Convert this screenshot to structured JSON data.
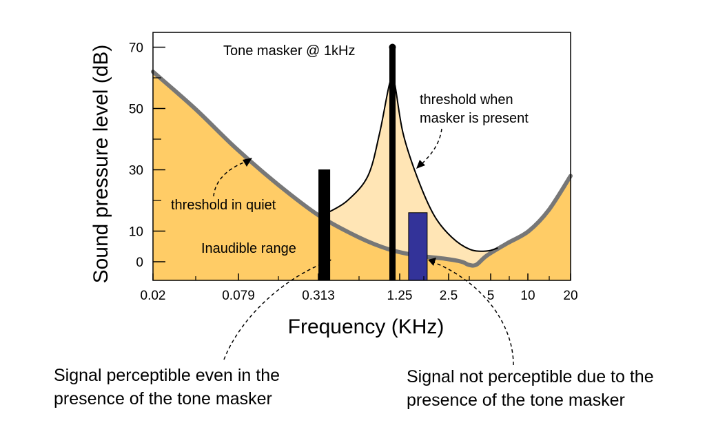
{
  "chart_data": {
    "type": "area",
    "xlabel": "Frequency (KHz)",
    "ylabel": "Sound pressure level (dB)",
    "x_tick_labels": [
      "0.02",
      "0.079",
      "0.313",
      "1.25",
      "2.5",
      "5",
      "10",
      "20"
    ],
    "x_tick_values": [
      0.02,
      0.079,
      0.313,
      1.25,
      2.5,
      5,
      10,
      20
    ],
    "y_ticks": [
      0,
      10,
      30,
      50,
      70
    ],
    "ylim": [
      -5,
      75
    ],
    "series": [
      {
        "name": "threshold in quiet",
        "x": [
          0.02,
          0.04,
          0.079,
          0.16,
          0.313,
          0.6,
          1.0,
          1.6,
          2.5,
          3.3,
          3.7,
          4.2,
          5,
          7,
          10,
          14,
          20
        ],
        "y": [
          62,
          50,
          37,
          25,
          15,
          8,
          4,
          2,
          1,
          0,
          -1,
          -1,
          2,
          6,
          10,
          17,
          28
        ],
        "color": "#777777"
      },
      {
        "name": "threshold when masker is present",
        "x": [
          0.36,
          0.5,
          0.7,
          0.85,
          1.0,
          1.08,
          1.25,
          1.6,
          2.1,
          2.8,
          3.8,
          5,
          6
        ],
        "y": [
          16,
          20,
          28,
          42,
          58,
          59,
          42,
          27,
          15,
          8,
          4,
          3.5,
          4.5
        ],
        "color": "#000000"
      }
    ],
    "bars": [
      {
        "x": 0.34,
        "value": 30,
        "color": "#000000"
      },
      {
        "x": 1.05,
        "value": 70,
        "color": "#000000"
      },
      {
        "x": 1.6,
        "value": 16,
        "color": "#333399"
      }
    ],
    "colors": {
      "inaudible_fill": "#FFCC66",
      "masked_fill": "#FFE5B5"
    },
    "annotations": {
      "tone_masker": "Tone masker @ 1kHz",
      "threshold_masker_line1": "threshold when",
      "threshold_masker_line2": "masker is present",
      "threshold_quiet": "threshold in quiet",
      "inaudible": "Inaudible range",
      "caption_left_line1": "Signal perceptible even in the",
      "caption_left_line2": "presence of the tone masker",
      "caption_right_line1": "Signal not perceptible due to the",
      "caption_right_line2": "presence of the tone masker"
    }
  }
}
